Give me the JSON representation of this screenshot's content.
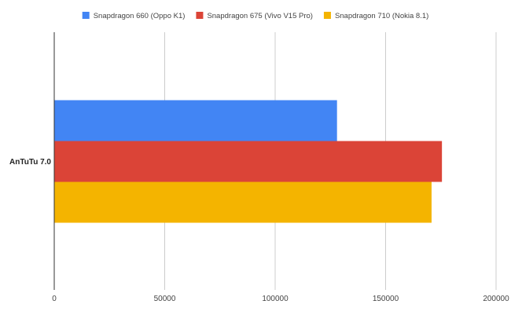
{
  "chart_data": {
    "type": "bar",
    "orientation": "horizontal",
    "categories": [
      "AnTuTu 7.0"
    ],
    "series": [
      {
        "name": "Snapdragon 660 (Oppo K1)",
        "color": "#4285f4",
        "values": [
          128000
        ]
      },
      {
        "name": "Snapdragon 675 (Vivo V15 Pro)",
        "color": "#db4437",
        "values": [
          175500
        ]
      },
      {
        "name": "Snapdragon 710 (Nokia 8.1)",
        "color": "#f4b400",
        "values": [
          170800
        ]
      }
    ],
    "xlim": [
      0,
      200000
    ],
    "xticks": [
      "0",
      "50000",
      "100000",
      "150000",
      "200000"
    ],
    "title": "",
    "xlabel": "",
    "ylabel": "",
    "grid": true,
    "legend_position": "top"
  }
}
